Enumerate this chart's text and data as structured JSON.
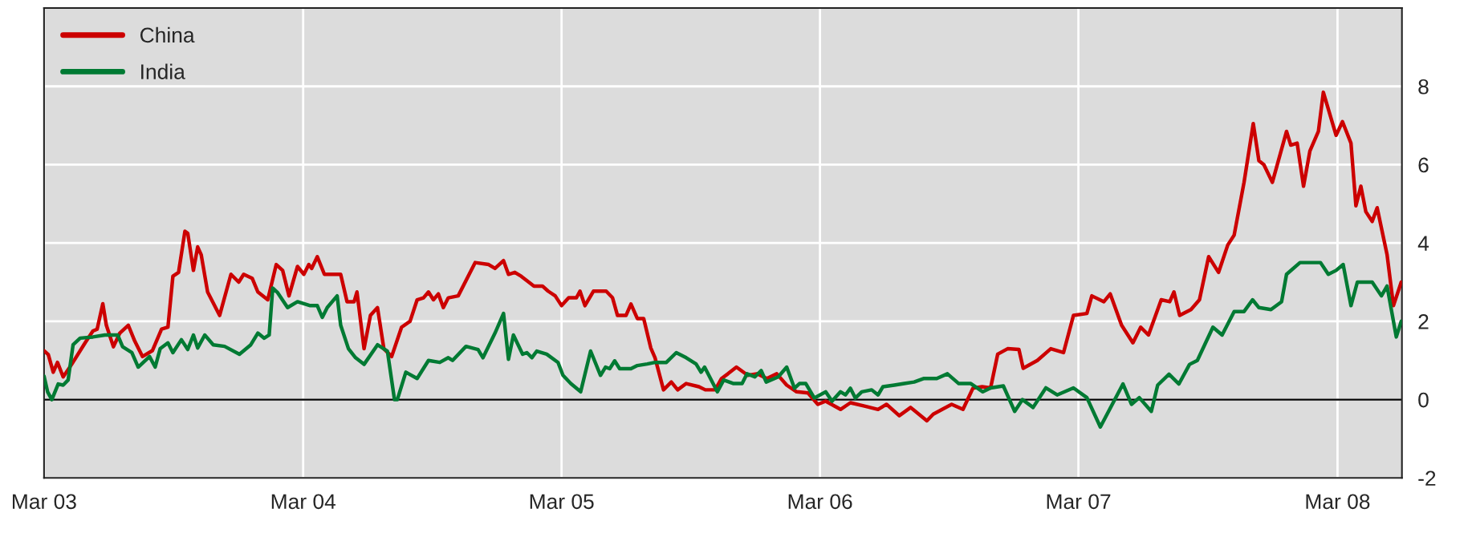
{
  "chart_data": {
    "type": "line",
    "xlim": [
      "2003-03-01",
      "2008-05-31"
    ],
    "xticks": [
      {
        "value": "2003-03-01",
        "label": "Mar 03"
      },
      {
        "value": "2004-03-01",
        "label": "Mar 04"
      },
      {
        "value": "2005-03-01",
        "label": "Mar 05"
      },
      {
        "value": "2006-03-01",
        "label": "Mar 06"
      },
      {
        "value": "2007-03-01",
        "label": "Mar 07"
      },
      {
        "value": "2008-03-01",
        "label": "Mar 08"
      }
    ],
    "ylim": [
      -2,
      10
    ],
    "yticks": [
      -2,
      0,
      2,
      4,
      6,
      8
    ],
    "grid": true,
    "legend": "top left",
    "line_style": "solid",
    "ref_lines": [
      {
        "axis": "y",
        "value": 0,
        "color": "#000000"
      }
    ],
    "series": [
      {
        "name": "China",
        "color": "#cc0000",
        "x": [
          "2003-03-01",
          "2003-03-07",
          "2003-03-14",
          "2003-03-20",
          "2003-03-28",
          "2003-04-09",
          "2003-04-28",
          "2003-05-09",
          "2003-05-15",
          "2003-05-23",
          "2003-05-28",
          "2003-06-07",
          "2003-06-16",
          "2003-06-28",
          "2003-07-07",
          "2003-07-18",
          "2003-08-01",
          "2003-08-14",
          "2003-08-23",
          "2003-08-30",
          "2003-09-07",
          "2003-09-16",
          "2003-09-20",
          "2003-09-28",
          "2003-10-04",
          "2003-10-09",
          "2003-10-18",
          "2003-11-04",
          "2003-11-20",
          "2003-12-01",
          "2003-12-08",
          "2003-12-20",
          "2003-12-28",
          "2004-01-11",
          "2004-01-23",
          "2004-02-01",
          "2004-02-10",
          "2004-02-22",
          "2004-03-02",
          "2004-03-09",
          "2004-03-13",
          "2004-03-21",
          "2004-03-31",
          "2004-04-23",
          "2004-05-02",
          "2004-05-12",
          "2004-05-16",
          "2004-05-26",
          "2004-06-04",
          "2004-06-14",
          "2004-06-23",
          "2004-07-04",
          "2004-07-18",
          "2004-07-30",
          "2004-08-09",
          "2004-08-18",
          "2004-08-25",
          "2004-09-01",
          "2004-09-08",
          "2004-09-15",
          "2004-09-22",
          "2004-10-06",
          "2004-10-30",
          "2004-11-18",
          "2004-11-27",
          "2004-12-09",
          "2004-12-16",
          "2004-12-25",
          "2005-01-03",
          "2005-01-21",
          "2005-02-02",
          "2005-02-10",
          "2005-02-20",
          "2005-03-01",
          "2005-03-11",
          "2005-03-22",
          "2005-03-27",
          "2005-04-03",
          "2005-04-15",
          "2005-05-03",
          "2005-05-12",
          "2005-05-19",
          "2005-05-31",
          "2005-06-07",
          "2005-06-16",
          "2005-06-25",
          "2005-07-05",
          "2005-07-11",
          "2005-07-23",
          "2005-08-03",
          "2005-08-12",
          "2005-08-24",
          "2005-09-11",
          "2005-09-20",
          "2005-10-04",
          "2005-10-13",
          "2005-10-22",
          "2005-11-03",
          "2005-11-19",
          "2005-12-02",
          "2005-12-16",
          "2005-12-30",
          "2006-01-13",
          "2006-01-27",
          "2006-02-12",
          "2006-02-26",
          "2006-03-09",
          "2006-03-30",
          "2006-04-13",
          "2006-05-04",
          "2006-05-22",
          "2006-06-03",
          "2006-06-21",
          "2006-07-07",
          "2006-07-30",
          "2006-08-08",
          "2006-09-03",
          "2006-09-19",
          "2006-10-03",
          "2006-10-16",
          "2006-10-28",
          "2006-11-07",
          "2006-11-21",
          "2006-12-07",
          "2006-12-13",
          "2007-01-02",
          "2007-01-21",
          "2007-02-08",
          "2007-02-22",
          "2007-03-13",
          "2007-03-20",
          "2007-04-06",
          "2007-04-15",
          "2007-05-01",
          "2007-05-17",
          "2007-05-28",
          "2007-06-08",
          "2007-06-26",
          "2007-07-08",
          "2007-07-14",
          "2007-07-22",
          "2007-08-07",
          "2007-08-19",
          "2007-09-01",
          "2007-09-15",
          "2007-09-28",
          "2007-10-07",
          "2007-10-21",
          "2007-11-03",
          "2007-11-11",
          "2007-11-18",
          "2007-11-30",
          "2007-12-20",
          "2007-12-26",
          "2008-01-04",
          "2008-01-13",
          "2008-01-22",
          "2008-02-03",
          "2008-02-10",
          "2008-02-28",
          "2008-03-08",
          "2008-03-20",
          "2008-03-27",
          "2008-04-03",
          "2008-04-10",
          "2008-04-19",
          "2008-04-26",
          "2008-05-10",
          "2008-05-19",
          "2008-05-30"
        ],
        "values": [
          1.25,
          1.15,
          0.7,
          0.95,
          0.58,
          0.9,
          1.45,
          1.75,
          1.8,
          2.45,
          1.9,
          1.35,
          1.7,
          1.9,
          1.5,
          1.1,
          1.25,
          1.8,
          1.85,
          3.15,
          3.25,
          4.3,
          4.25,
          3.3,
          3.9,
          3.7,
          2.75,
          2.15,
          3.2,
          3.0,
          3.2,
          3.1,
          2.75,
          2.55,
          3.45,
          3.3,
          2.65,
          3.4,
          3.2,
          3.45,
          3.35,
          3.65,
          3.2,
          3.2,
          2.5,
          2.5,
          2.75,
          1.3,
          2.15,
          2.35,
          1.3,
          1.1,
          1.85,
          2.0,
          2.55,
          2.6,
          2.75,
          2.55,
          2.7,
          2.35,
          2.6,
          2.65,
          3.5,
          3.45,
          3.35,
          3.55,
          3.2,
          3.25,
          3.15,
          2.9,
          2.9,
          2.77,
          2.65,
          2.4,
          2.6,
          2.6,
          2.77,
          2.4,
          2.77,
          2.77,
          2.6,
          2.15,
          2.15,
          2.44,
          2.07,
          2.07,
          1.32,
          1.07,
          0.25,
          0.45,
          0.25,
          0.41,
          0.33,
          0.25,
          0.25,
          0.54,
          0.66,
          0.83,
          0.62,
          0.66,
          0.54,
          0.66,
          0.37,
          0.2,
          0.17,
          -0.12,
          -0.04,
          -0.25,
          -0.08,
          -0.17,
          -0.25,
          -0.12,
          -0.41,
          -0.2,
          -0.54,
          -0.37,
          -0.12,
          -0.25,
          0.29,
          0.33,
          0.3,
          1.16,
          1.3,
          1.28,
          0.8,
          1.0,
          1.3,
          1.2,
          2.15,
          2.2,
          2.65,
          2.5,
          2.7,
          1.9,
          1.45,
          1.85,
          1.65,
          2.55,
          2.5,
          2.75,
          2.15,
          2.3,
          2.55,
          3.65,
          3.25,
          3.95,
          4.2,
          5.55,
          7.05,
          6.1,
          6.0,
          5.55,
          6.85,
          6.5,
          6.55,
          5.45,
          6.35,
          6.85,
          7.85,
          6.75,
          7.1,
          6.55,
          4.95,
          5.45,
          4.8,
          4.55,
          4.9,
          3.7,
          2.4,
          3.0
        ]
      },
      {
        "name": "India",
        "color": "#007a33",
        "x": [
          "2003-03-01",
          "2003-03-06",
          "2003-03-12",
          "2003-03-21",
          "2003-03-28",
          "2003-04-04",
          "2003-04-11",
          "2003-04-21",
          "2003-05-09",
          "2003-05-26",
          "2003-06-13",
          "2003-06-20",
          "2003-07-03",
          "2003-07-12",
          "2003-07-28",
          "2003-08-05",
          "2003-08-12",
          "2003-08-23",
          "2003-08-30",
          "2003-09-11",
          "2003-09-20",
          "2003-09-28",
          "2003-10-04",
          "2003-10-14",
          "2003-10-26",
          "2003-11-11",
          "2003-12-02",
          "2003-12-18",
          "2003-12-28",
          "2004-01-06",
          "2004-01-13",
          "2004-01-18",
          "2004-01-25",
          "2004-02-08",
          "2004-02-22",
          "2004-03-11",
          "2004-03-21",
          "2004-03-28",
          "2004-04-04",
          "2004-04-18",
          "2004-04-23",
          "2004-05-04",
          "2004-05-14",
          "2004-05-26",
          "2004-06-14",
          "2004-06-28",
          "2004-07-08",
          "2004-07-12",
          "2004-07-24",
          "2004-08-09",
          "2004-08-25",
          "2004-09-10",
          "2004-09-22",
          "2004-09-28",
          "2004-10-17",
          "2004-11-03",
          "2004-11-10",
          "2004-11-27",
          "2004-12-09",
          "2004-12-16",
          "2004-12-23",
          "2005-01-05",
          "2005-01-11",
          "2005-01-18",
          "2005-01-25",
          "2005-02-08",
          "2005-02-24",
          "2005-03-03",
          "2005-03-14",
          "2005-03-28",
          "2005-04-11",
          "2005-04-25",
          "2005-05-02",
          "2005-05-08",
          "2005-05-15",
          "2005-05-22",
          "2005-06-07",
          "2005-06-16",
          "2005-06-30",
          "2005-07-11",
          "2005-07-27",
          "2005-08-10",
          "2005-08-24",
          "2005-09-07",
          "2005-09-14",
          "2005-09-19",
          "2005-10-07",
          "2005-10-16",
          "2005-10-30",
          "2005-11-11",
          "2005-11-18",
          "2005-11-29",
          "2005-12-08",
          "2005-12-15",
          "2006-01-01",
          "2006-01-13",
          "2006-01-24",
          "2006-01-31",
          "2006-02-09",
          "2006-02-21",
          "2006-03-09",
          "2006-03-18",
          "2006-03-30",
          "2006-04-06",
          "2006-04-13",
          "2006-04-20",
          "2006-04-29",
          "2006-05-13",
          "2006-05-22",
          "2006-05-29",
          "2006-06-14",
          "2006-06-28",
          "2006-07-12",
          "2006-07-26",
          "2006-08-13",
          "2006-08-28",
          "2006-09-13",
          "2006-09-30",
          "2006-10-17",
          "2006-10-28",
          "2006-11-15",
          "2006-12-01",
          "2006-12-12",
          "2006-12-27",
          "2007-01-14",
          "2007-01-30",
          "2007-02-22",
          "2007-03-13",
          "2007-04-01",
          "2007-05-03",
          "2007-05-15",
          "2007-05-26",
          "2007-06-12",
          "2007-06-21",
          "2007-07-07",
          "2007-07-21",
          "2007-08-05",
          "2007-08-16",
          "2007-09-07",
          "2007-09-20",
          "2007-10-07",
          "2007-10-21",
          "2007-11-02",
          "2007-11-11",
          "2007-11-28",
          "2007-12-13",
          "2007-12-20",
          "2008-01-08",
          "2008-02-06",
          "2008-02-17",
          "2008-02-28",
          "2008-03-09",
          "2008-03-20",
          "2008-03-29",
          "2008-04-19",
          "2008-05-02",
          "2008-05-10",
          "2008-05-23",
          "2008-05-30"
        ],
        "values": [
          0.6,
          0.2,
          0.0,
          0.4,
          0.37,
          0.5,
          1.4,
          1.57,
          1.6,
          1.65,
          1.65,
          1.35,
          1.2,
          0.83,
          1.1,
          0.83,
          1.3,
          1.45,
          1.2,
          1.53,
          1.28,
          1.65,
          1.32,
          1.65,
          1.4,
          1.36,
          1.16,
          1.4,
          1.7,
          1.57,
          1.65,
          2.85,
          2.73,
          2.35,
          2.5,
          2.4,
          2.4,
          2.1,
          2.35,
          2.65,
          1.9,
          1.3,
          1.07,
          0.9,
          1.4,
          1.24,
          0.0,
          0.0,
          0.7,
          0.54,
          1.0,
          0.95,
          1.07,
          1.0,
          1.36,
          1.28,
          1.07,
          1.7,
          2.2,
          1.03,
          1.65,
          1.16,
          1.2,
          1.07,
          1.24,
          1.16,
          0.95,
          0.62,
          0.41,
          0.2,
          1.24,
          0.62,
          0.83,
          0.79,
          0.99,
          0.79,
          0.79,
          0.87,
          0.91,
          0.95,
          0.95,
          1.2,
          1.07,
          0.91,
          0.7,
          0.83,
          0.2,
          0.5,
          0.41,
          0.41,
          0.66,
          0.58,
          0.74,
          0.45,
          0.58,
          0.83,
          0.29,
          0.41,
          0.41,
          0.04,
          0.2,
          -0.04,
          0.2,
          0.12,
          0.29,
          0.04,
          0.2,
          0.25,
          0.12,
          0.33,
          0.37,
          0.41,
          0.45,
          0.54,
          0.54,
          0.66,
          0.41,
          0.41,
          0.2,
          0.3,
          0.35,
          -0.3,
          0.0,
          -0.2,
          0.3,
          0.12,
          0.3,
          0.05,
          -0.7,
          0.4,
          -0.12,
          0.05,
          -0.3,
          0.37,
          0.65,
          0.4,
          0.9,
          1.0,
          1.85,
          1.65,
          2.25,
          2.25,
          2.55,
          2.35,
          2.3,
          2.5,
          3.2,
          3.5,
          3.5,
          3.2,
          3.3,
          3.45,
          2.4,
          3.0,
          3.0,
          2.65,
          2.9,
          1.6,
          2.0
        ]
      }
    ]
  }
}
